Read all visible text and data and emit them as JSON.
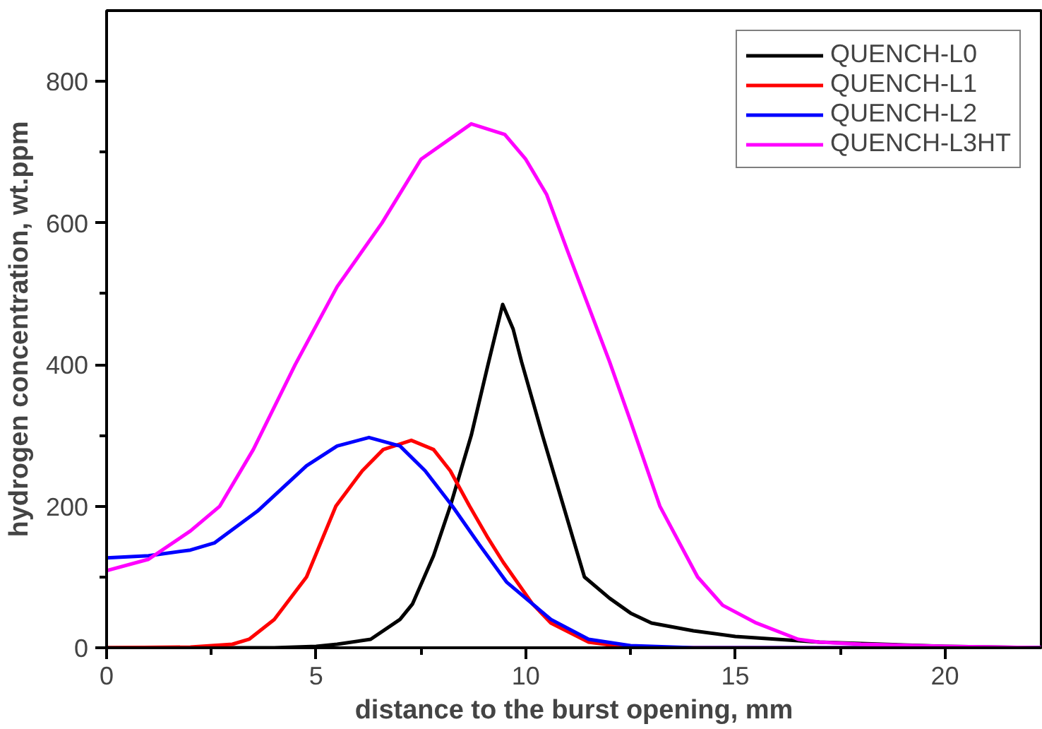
{
  "chart_data": {
    "type": "line",
    "xlabel": "distance to the burst opening, mm",
    "ylabel": "hydrogen concentration, wt.ppm",
    "xlim": [
      0,
      22.3
    ],
    "ylim": [
      0,
      900
    ],
    "xticks": [
      0,
      {
        "value": 2.5,
        "label": null
      },
      5,
      {
        "value": 7.5,
        "label": null
      },
      10,
      {
        "value": 12.5,
        "label": null
      },
      15,
      {
        "value": 17.5,
        "label": null
      },
      20
    ],
    "yticks": [
      0,
      {
        "value": 100,
        "label": null
      },
      200,
      {
        "value": 300,
        "label": null
      },
      400,
      {
        "value": 500,
        "label": null
      },
      600,
      {
        "value": 700,
        "label": null
      },
      800
    ],
    "grid": false,
    "legend": "top right",
    "line_style": "solid",
    "marker": "none",
    "series": [
      {
        "name": "QUENCH-L0",
        "color": "#000000",
        "x": [
          0,
          4,
          5,
          5.5,
          6.3,
          7,
          7.3,
          7.8,
          8.2,
          8.7,
          9.1,
          9.45,
          9.7,
          9.9,
          10.4,
          10.9,
          11.4,
          12,
          12.5,
          13,
          14,
          15,
          17,
          20,
          22.3
        ],
        "values": [
          0,
          0,
          2,
          5,
          12,
          40,
          62,
          130,
          200,
          300,
          400,
          485,
          450,
          404,
          300,
          200,
          100,
          70,
          49,
          35,
          24,
          16,
          8,
          2,
          0
        ]
      },
      {
        "name": "QUENCH-L1",
        "color": "#ff0000",
        "x": [
          0,
          2,
          3,
          3.4,
          4,
          4.77,
          5.47,
          6.1,
          6.6,
          7.27,
          7.8,
          8.2,
          8.66,
          9.1,
          9.46,
          10.16,
          10.6,
          11.5,
          12.5,
          14,
          22.3
        ],
        "values": [
          0,
          1,
          5,
          12,
          40,
          100,
          200,
          250,
          280,
          293,
          280,
          250,
          200,
          155,
          121,
          62,
          35,
          8,
          null,
          0,
          0
        ]
      },
      {
        "name": "QUENCH-L2",
        "color": "#0000ff",
        "x": [
          0,
          1,
          2,
          2.57,
          3.6,
          4.77,
          5.5,
          6.26,
          7,
          7.6,
          8.25,
          8.9,
          9.54,
          10.16,
          10.6,
          11.5,
          12.5,
          14,
          22.3
        ],
        "values": [
          127,
          130,
          138,
          148,
          193,
          257,
          285,
          297,
          285,
          250,
          200,
          145,
          93,
          62,
          40,
          12,
          3,
          0,
          0
        ]
      },
      {
        "name": "QUENCH-L3HT",
        "color": "#ff00ff",
        "x": [
          0,
          1,
          2,
          2.7,
          3.5,
          4.5,
          5.5,
          6.57,
          7.5,
          8.7,
          9.5,
          10,
          10.5,
          11,
          12,
          12.5,
          13.2,
          14.1,
          14.7,
          15.5,
          16.5,
          17,
          18,
          20,
          22.3
        ],
        "values": [
          109,
          125,
          165,
          200,
          280,
          400,
          510,
          600,
          690,
          740,
          725,
          690,
          640,
          560,
          404,
          320,
          200,
          100,
          60,
          35,
          12,
          8,
          5,
          2,
          0
        ]
      }
    ]
  }
}
